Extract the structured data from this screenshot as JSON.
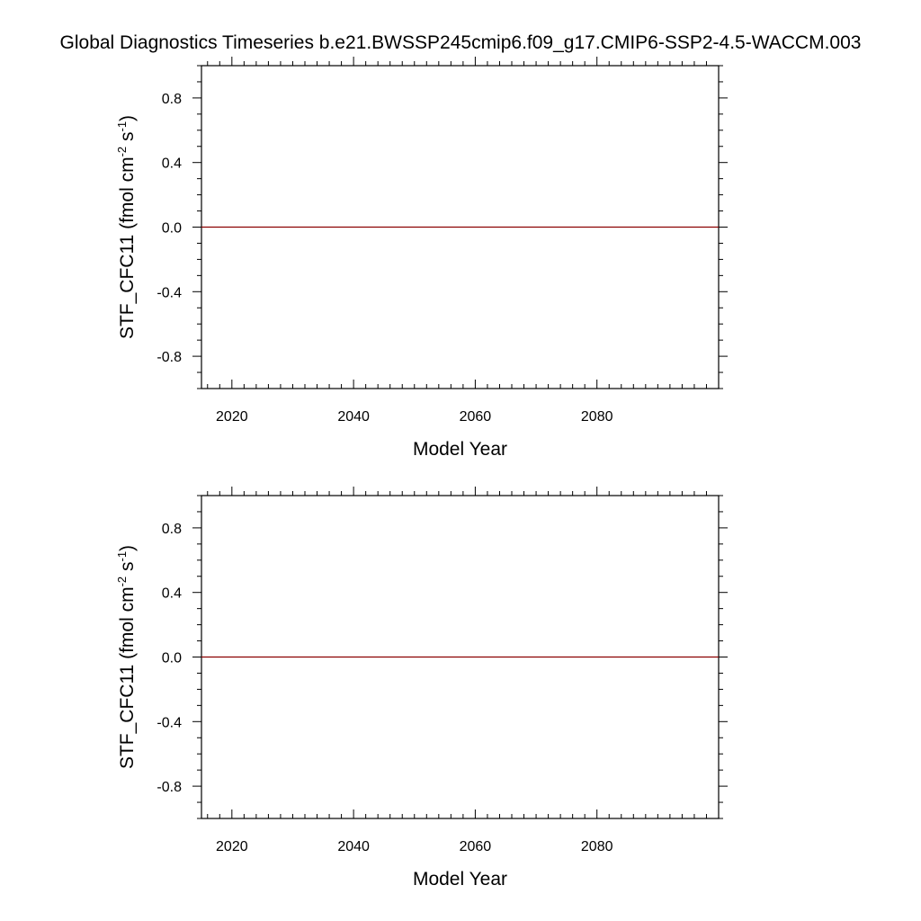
{
  "title": "Global Diagnostics Timeseries b.e21.BWSSP245cmip6.f09_g17.CMIP6-SSP2-4.5-WACCM.003",
  "chart_data": [
    {
      "type": "line",
      "xlabel": "Model Year",
      "ylabel_main": "STF_CFC11 (fmol cm",
      "ylabel_sup1": "-2",
      "ylabel_mid": " s",
      "ylabel_sup2": "-1",
      "ylabel_end": ")",
      "xlim": [
        2015,
        2100
      ],
      "ylim": [
        -1.0,
        1.0
      ],
      "xticks": [
        2020,
        2040,
        2060,
        2080
      ],
      "xtick_labels": [
        "2020",
        "2040",
        "2060",
        "2080"
      ],
      "yticks": [
        0.8,
        0.4,
        0.0,
        -0.4,
        -0.8
      ],
      "ytick_labels": [
        "0.8",
        "0.4",
        "0.0",
        "-0.4",
        "-0.8"
      ],
      "grid": false,
      "series": [
        {
          "color": "#8b0000",
          "x": [
            2015,
            2100
          ],
          "y": [
            0.0,
            0.0
          ]
        }
      ]
    },
    {
      "type": "line",
      "xlabel": "Model Year",
      "ylabel_main": "STF_CFC11 (fmol cm",
      "ylabel_sup1": "-2",
      "ylabel_mid": " s",
      "ylabel_sup2": "-1",
      "ylabel_end": ")",
      "xlim": [
        2015,
        2100
      ],
      "ylim": [
        -1.0,
        1.0
      ],
      "xticks": [
        2020,
        2040,
        2060,
        2080
      ],
      "xtick_labels": [
        "2020",
        "2040",
        "2060",
        "2080"
      ],
      "yticks": [
        0.8,
        0.4,
        0.0,
        -0.4,
        -0.8
      ],
      "ytick_labels": [
        "0.8",
        "0.4",
        "0.0",
        "-0.4",
        "-0.8"
      ],
      "grid": false,
      "series": [
        {
          "color": "#8b0000",
          "x": [
            2015,
            2100
          ],
          "y": [
            0.0,
            0.0
          ]
        }
      ]
    }
  ]
}
